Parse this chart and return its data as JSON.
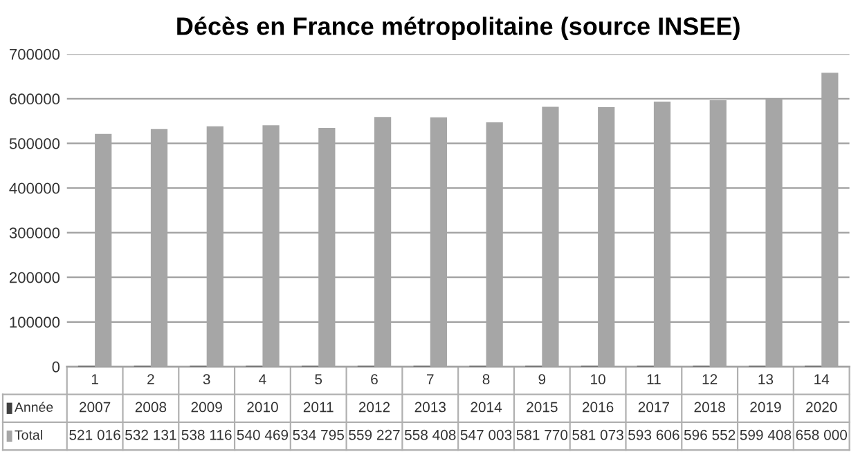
{
  "chart_data": {
    "type": "bar",
    "title": "Décès en France métropolitaine (source INSEE)",
    "categories": [
      "1",
      "2",
      "3",
      "4",
      "5",
      "6",
      "7",
      "8",
      "9",
      "10",
      "11",
      "12",
      "13",
      "14"
    ],
    "series": [
      {
        "name": "Année",
        "color": "#404040",
        "values": [
          2007,
          2008,
          2009,
          2010,
          2011,
          2012,
          2013,
          2014,
          2015,
          2016,
          2017,
          2018,
          2019,
          2020
        ],
        "value_labels": [
          "2007",
          "2008",
          "2009",
          "2010",
          "2011",
          "2012",
          "2013",
          "2014",
          "2015",
          "2016",
          "2017",
          "2018",
          "2019",
          "2020"
        ]
      },
      {
        "name": "Total",
        "color": "#a6a6a6",
        "values": [
          521016,
          532131,
          538116,
          540469,
          534795,
          559227,
          558408,
          547003,
          581770,
          581073,
          593606,
          596552,
          599408,
          658000
        ],
        "value_labels": [
          "521 016",
          "532 131",
          "538 116",
          "540 469",
          "534 795",
          "559 227",
          "558 408",
          "547 003",
          "581 770",
          "581 073",
          "593 606",
          "596 552",
          "599 408",
          "658 000"
        ]
      }
    ],
    "ylim": [
      0,
      700000
    ],
    "yticks": [
      0,
      100000,
      200000,
      300000,
      400000,
      500000,
      600000,
      700000
    ],
    "grid": "y",
    "legend": "bottom left"
  }
}
